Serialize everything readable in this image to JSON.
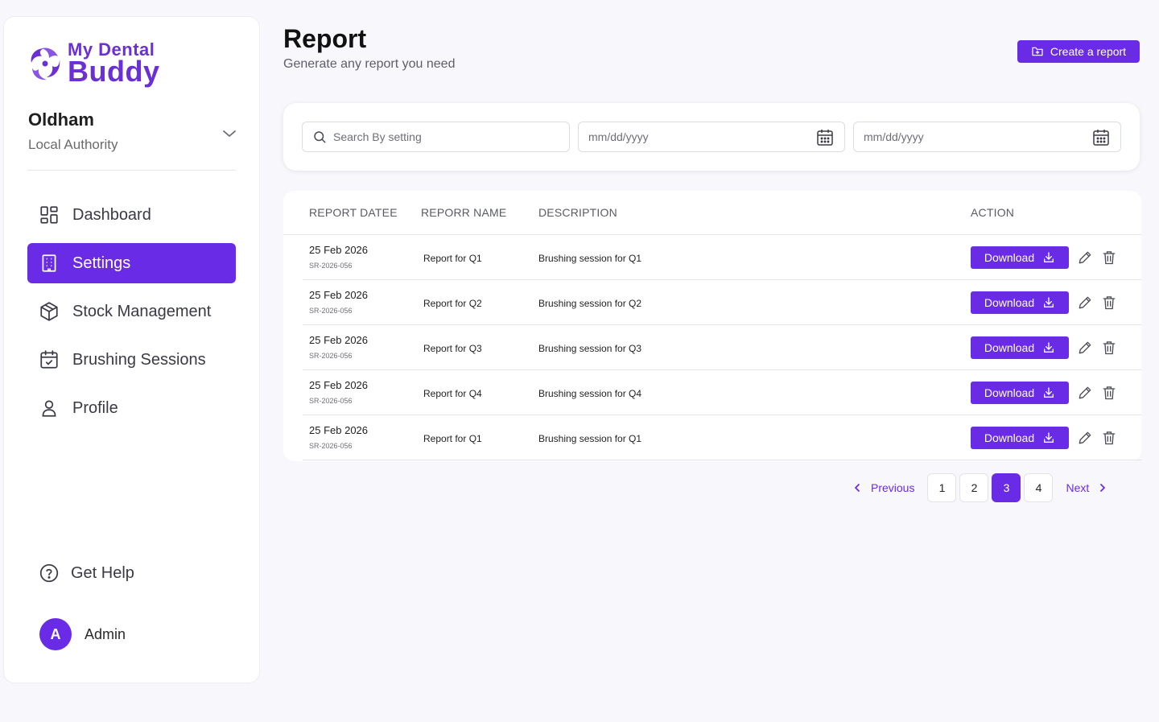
{
  "brand": {
    "line1": "My Dental",
    "line2": "Buddy",
    "color": "#6b2fd6"
  },
  "org": {
    "name": "Oldham",
    "type": "Local Authority"
  },
  "nav": [
    {
      "label": "Dashboard",
      "icon": "dashboard-icon",
      "active": false
    },
    {
      "label": "Settings",
      "icon": "building-icon",
      "active": true
    },
    {
      "label": "Stock Management",
      "icon": "box-icon",
      "active": false
    },
    {
      "label": "Brushing Sessions",
      "icon": "calendar-check-icon",
      "active": false
    },
    {
      "label": "Profile",
      "icon": "user-icon",
      "active": false
    }
  ],
  "help": {
    "label": "Get Help"
  },
  "user": {
    "initial": "A",
    "name": "Admin"
  },
  "header": {
    "title": "Report",
    "subtitle": "Generate any report you need",
    "create_label": "Create a report"
  },
  "filters": {
    "search_placeholder": "Search By setting",
    "date_from_placeholder": "mm/dd/yyyy",
    "date_to_placeholder": "mm/dd/yyyy"
  },
  "table": {
    "headers": {
      "date": "REPORT DATEE",
      "name": "REPORR NAME",
      "description": "DESCRIPTION",
      "action": "ACTION"
    },
    "download_label": "Download",
    "rows": [
      {
        "date": "25 Feb 2026",
        "code": "SR-2026-056",
        "name": "Report for  Q1",
        "description": "Brushing session for  Q1"
      },
      {
        "date": "25 Feb 2026",
        "code": "SR-2026-056",
        "name": "Report for  Q2",
        "description": "Brushing session for  Q2"
      },
      {
        "date": "25 Feb 2026",
        "code": "SR-2026-056",
        "name": "Report for  Q3",
        "description": "Brushing session for  Q3"
      },
      {
        "date": "25 Feb 2026",
        "code": "SR-2026-056",
        "name": "Report for  Q4",
        "description": "Brushing session for  Q4"
      },
      {
        "date": "25 Feb 2026",
        "code": "SR-2026-056",
        "name": "Report for  Q1",
        "description": "Brushing session for  Q1"
      }
    ]
  },
  "pagination": {
    "prev": "Previous",
    "next": "Next",
    "pages": [
      "1",
      "2",
      "3",
      "4"
    ],
    "current": "3"
  },
  "colors": {
    "accent": "#6a2be6",
    "background": "#f8f8fc"
  }
}
